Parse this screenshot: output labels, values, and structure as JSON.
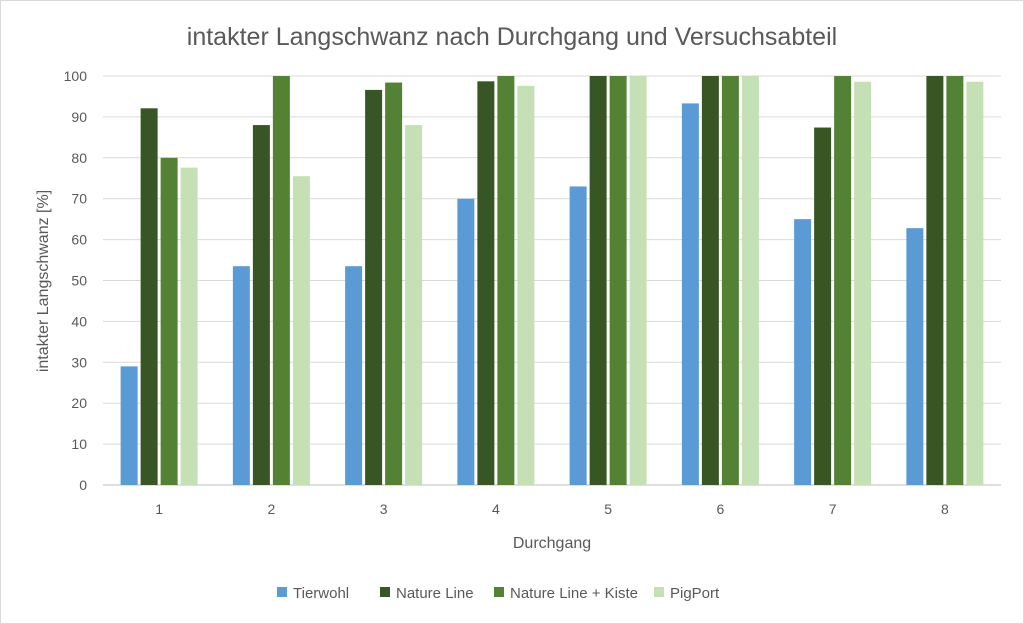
{
  "chart_data": {
    "type": "bar",
    "title": "intakter Langschwanz nach Durchgang und Versuchsabteil",
    "xlabel": "Durchgang",
    "ylabel": "intakter Langschwanz [%]",
    "ylim": [
      0,
      100
    ],
    "yticks": [
      0,
      10,
      20,
      30,
      40,
      50,
      60,
      70,
      80,
      90,
      100
    ],
    "grid": true,
    "legend_position": "bottom",
    "categories": [
      "1",
      "2",
      "3",
      "4",
      "5",
      "6",
      "7",
      "8"
    ],
    "series": [
      {
        "name": "Tierwohl",
        "color": "#5B9BD5",
        "values": [
          29,
          53.5,
          53.5,
          70,
          73,
          93.3,
          65,
          62.8
        ]
      },
      {
        "name": "Nature Line",
        "color": "#375623",
        "values": [
          92.1,
          88,
          96.6,
          98.7,
          100,
          100,
          87.4,
          100
        ]
      },
      {
        "name": "Nature Line + Kiste",
        "color": "#548235",
        "values": [
          80,
          100,
          98.4,
          100,
          100,
          100,
          100,
          100
        ]
      },
      {
        "name": "PigPort",
        "color": "#C5E0B4",
        "values": [
          77.6,
          75.5,
          88,
          97.6,
          100,
          100,
          98.6,
          98.6
        ]
      }
    ]
  }
}
